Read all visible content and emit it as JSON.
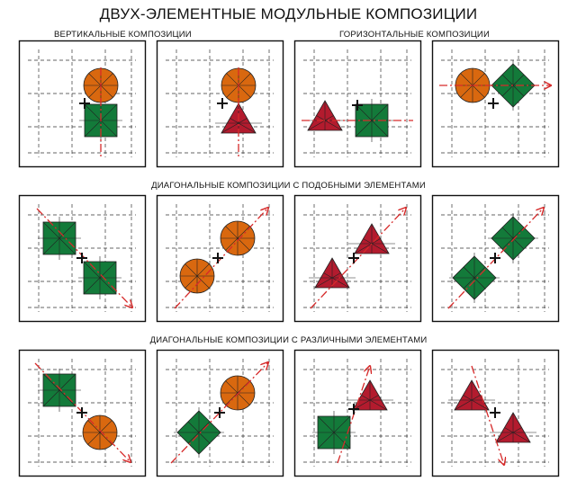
{
  "title": "ДВУХ-ЭЛЕМЕНТНЫЕ МОДУЛЬНЫЕ КОМПОЗИЦИИ",
  "sections": {
    "vertical": "ВЕРТИКАЛЬНЫЕ КОМПОЗИЦИИ",
    "horizontal": "ГОРИЗОНТАЛЬНЫЕ КОМПОЗИЦИИ",
    "diagonal_similar": "ДИАГОНАЛЬНЫЕ КОМПОЗИЦИИ С ПОДОБНЫМИ ЭЛЕМЕНТАМИ",
    "diagonal_different": "ДИАГОНАЛЬНЫЕ КОМПОЗИЦИИ С РАЗЛИЧНЫМИ ЭЛЕМЕНТАМИ"
  },
  "colors": {
    "circle": "#d9680f",
    "square": "#137a3a",
    "triangle": "#b31b2e",
    "axis": "#d62a2a",
    "grid": "#333333",
    "frame": "#111111"
  },
  "compositions": [
    {
      "row": 1,
      "direction": "vertical",
      "elements": [
        "circle",
        "square"
      ]
    },
    {
      "row": 1,
      "direction": "vertical",
      "elements": [
        "circle",
        "triangle"
      ]
    },
    {
      "row": 1,
      "direction": "horizontal",
      "elements": [
        "triangle",
        "square"
      ]
    },
    {
      "row": 1,
      "direction": "horizontal",
      "elements": [
        "circle",
        "diamond"
      ]
    },
    {
      "row": 2,
      "direction": "diagonal-down",
      "elements": [
        "square",
        "square"
      ]
    },
    {
      "row": 2,
      "direction": "diagonal-up",
      "elements": [
        "circle",
        "circle"
      ]
    },
    {
      "row": 2,
      "direction": "diagonal-up",
      "elements": [
        "triangle",
        "triangle"
      ]
    },
    {
      "row": 2,
      "direction": "diagonal-up",
      "elements": [
        "diamond",
        "diamond"
      ]
    },
    {
      "row": 3,
      "direction": "diagonal-down",
      "elements": [
        "square",
        "circle"
      ]
    },
    {
      "row": 3,
      "direction": "diagonal-up",
      "elements": [
        "diamond",
        "circle"
      ]
    },
    {
      "row": 3,
      "direction": "diagonal-up",
      "elements": [
        "square",
        "triangle"
      ]
    },
    {
      "row": 3,
      "direction": "diagonal-down",
      "elements": [
        "triangle",
        "triangle"
      ]
    }
  ]
}
